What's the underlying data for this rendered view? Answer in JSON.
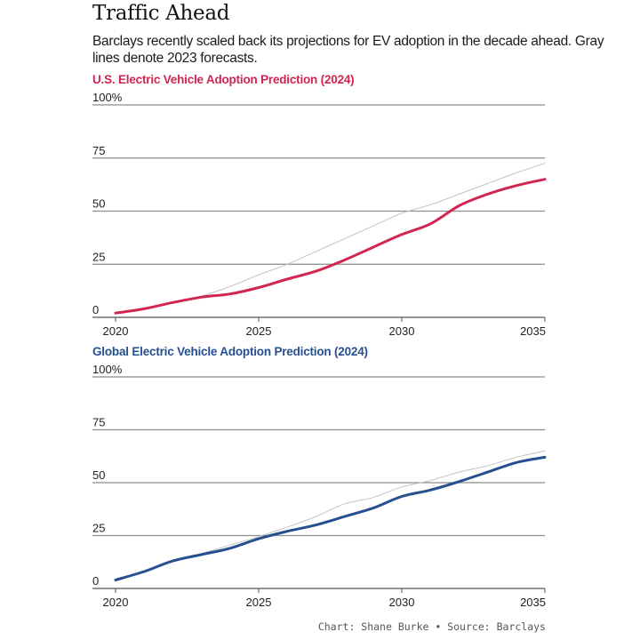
{
  "header": {
    "title": "Traffic Ahead",
    "subtitle": "Barclays recently scaled back its projections for EV adoption in the decade ahead. Gray lines denote 2023 forecasts."
  },
  "footer": {
    "credit": "Chart: Shane Burke • Source: Barclays"
  },
  "colors": {
    "us": "#d2254f",
    "global": "#264f8f",
    "forecast_2023": "#c4c4c4",
    "grid": "#8c8c8c"
  },
  "chart_data": [
    {
      "type": "line",
      "title": "U.S. Electric Vehicle Adoption Prediction (2024)",
      "xlabel": "",
      "ylabel": "",
      "x": [
        2020,
        2021,
        2022,
        2023,
        2024,
        2025,
        2026,
        2027,
        2028,
        2029,
        2030,
        2031,
        2032,
        2033,
        2034,
        2035
      ],
      "xlim": [
        2020,
        2035
      ],
      "ylim": [
        0,
        100
      ],
      "x_ticks": [
        "2020",
        "2025",
        "2030",
        "2035"
      ],
      "x_tick_values": [
        2020,
        2025,
        2030,
        2035
      ],
      "y_ticks": [
        "0",
        "25",
        "50",
        "75",
        "100%"
      ],
      "y_tick_values": [
        0,
        25,
        50,
        75,
        100
      ],
      "grid": true,
      "series": [
        {
          "name": "2023 forecast",
          "style": "gray",
          "values": [
            2,
            4,
            7,
            10,
            14.5,
            20,
            25,
            31,
            37,
            43,
            49,
            53,
            58,
            63,
            68,
            72.5
          ]
        },
        {
          "name": "2024 prediction",
          "style": "us",
          "values": [
            2,
            4,
            7,
            9.5,
            11,
            14,
            18,
            21.7,
            27,
            33,
            39,
            44,
            52.5,
            58,
            62,
            65
          ]
        }
      ]
    },
    {
      "type": "line",
      "title": "Global Electric Vehicle Adoption Prediction (2024)",
      "xlabel": "",
      "ylabel": "",
      "x": [
        2020,
        2021,
        2022,
        2023,
        2024,
        2025,
        2026,
        2027,
        2028,
        2029,
        2030,
        2031,
        2032,
        2033,
        2034,
        2035
      ],
      "xlim": [
        2020,
        2035
      ],
      "ylim": [
        0,
        100
      ],
      "x_ticks": [
        "2020",
        "2025",
        "2030",
        "2035"
      ],
      "x_tick_values": [
        2020,
        2025,
        2030,
        2035
      ],
      "y_ticks": [
        "0",
        "25",
        "50",
        "75",
        "100%"
      ],
      "y_tick_values": [
        0,
        25,
        50,
        75,
        100
      ],
      "grid": true,
      "series": [
        {
          "name": "2023 forecast",
          "style": "gray",
          "values": [
            4,
            8,
            13,
            16.5,
            20.5,
            24.5,
            29,
            34,
            40,
            43,
            48,
            51,
            55,
            58,
            62,
            65
          ]
        },
        {
          "name": "2024 prediction",
          "style": "global",
          "values": [
            4,
            8,
            13,
            16,
            19,
            23.5,
            27,
            30,
            34,
            38,
            43.5,
            46.5,
            50.5,
            55,
            59.5,
            62
          ]
        }
      ]
    }
  ]
}
